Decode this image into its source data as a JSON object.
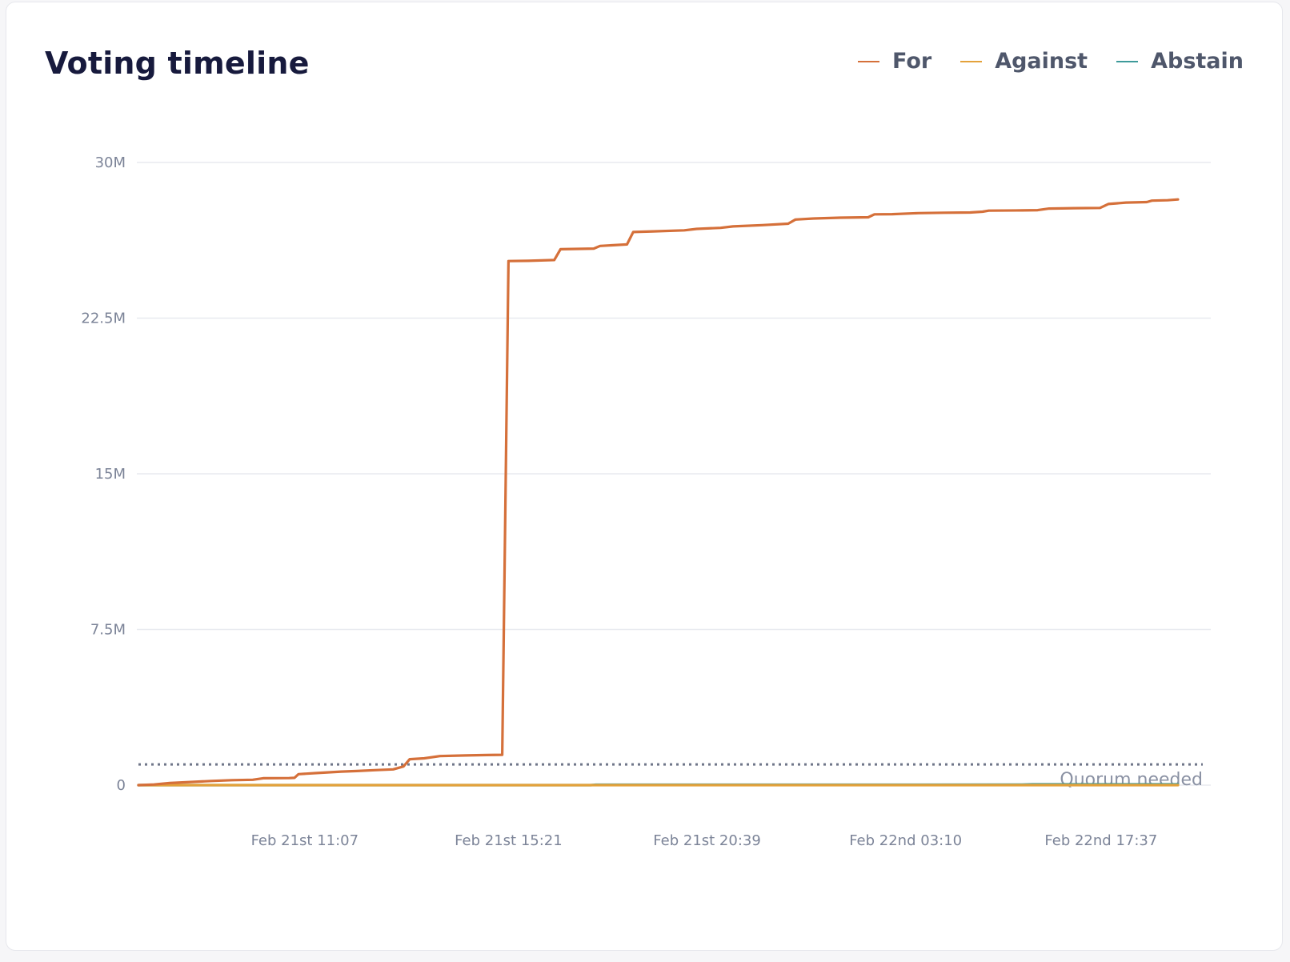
{
  "card": {
    "title": "Voting timeline"
  },
  "legend": [
    {
      "label": "For",
      "color": "#d5703a"
    },
    {
      "label": "Against",
      "color": "#e4a23b"
    },
    {
      "label": "Abstain",
      "color": "#3e9a9a"
    }
  ],
  "chart_data": {
    "type": "line",
    "title": "Voting timeline",
    "xlabel": "",
    "ylabel": "",
    "ylim": [
      0,
      30000000
    ],
    "y_ticks": [
      {
        "value": 0,
        "label": "0"
      },
      {
        "value": 7500000,
        "label": "7.5M"
      },
      {
        "value": 15000000,
        "label": "15M"
      },
      {
        "value": 22500000,
        "label": "22.5M"
      },
      {
        "value": 30000000,
        "label": "30M"
      }
    ],
    "x_range": [
      0,
      100
    ],
    "x_ticks": [
      {
        "position": 16.0,
        "label": "Feb 21st 11:07"
      },
      {
        "position": 35.6,
        "label": "Feb 21st 15:21"
      },
      {
        "position": 54.7,
        "label": "Feb 21st 20:39"
      },
      {
        "position": 73.8,
        "label": "Feb 22nd 03:10"
      },
      {
        "position": 92.6,
        "label": "Feb 22nd 17:37"
      }
    ],
    "grid": true,
    "legend_position": "top-right",
    "quorum": {
      "value": 1000000,
      "label": "Quorum needed",
      "style": "dotted",
      "color": "#6f7689"
    },
    "series": [
      {
        "name": "For",
        "color": "#d5703a",
        "points": [
          [
            0,
            0
          ],
          [
            1.5,
            30000
          ],
          [
            3.0,
            100000
          ],
          [
            5.0,
            150000
          ],
          [
            7.0,
            200000
          ],
          [
            9.0,
            240000
          ],
          [
            11.0,
            260000
          ],
          [
            11.6,
            300000
          ],
          [
            12.0,
            330000
          ],
          [
            14.5,
            340000
          ],
          [
            15.0,
            350000
          ],
          [
            15.4,
            530000
          ],
          [
            17.0,
            580000
          ],
          [
            19.5,
            650000
          ],
          [
            21.0,
            680000
          ],
          [
            22.7,
            720000
          ],
          [
            24.5,
            760000
          ],
          [
            25.5,
            900000
          ],
          [
            26.1,
            1250000
          ],
          [
            27.5,
            1290000
          ],
          [
            29.0,
            1400000
          ],
          [
            31.5,
            1430000
          ],
          [
            33.5,
            1450000
          ],
          [
            35.0,
            1460000
          ],
          [
            35.6,
            25250000
          ],
          [
            37.5,
            25260000
          ],
          [
            40.0,
            25300000
          ],
          [
            40.6,
            25820000
          ],
          [
            43.8,
            25850000
          ],
          [
            44.4,
            25980000
          ],
          [
            47.0,
            26050000
          ],
          [
            47.6,
            26650000
          ],
          [
            49.5,
            26680000
          ],
          [
            52.5,
            26730000
          ],
          [
            53.7,
            26800000
          ],
          [
            56.0,
            26850000
          ],
          [
            57.2,
            26920000
          ],
          [
            60.0,
            26980000
          ],
          [
            62.5,
            27050000
          ],
          [
            63.2,
            27250000
          ],
          [
            65.0,
            27300000
          ],
          [
            67.5,
            27340000
          ],
          [
            70.2,
            27360000
          ],
          [
            70.8,
            27500000
          ],
          [
            72.5,
            27510000
          ],
          [
            75.0,
            27560000
          ],
          [
            77.5,
            27580000
          ],
          [
            80.0,
            27590000
          ],
          [
            81.2,
            27630000
          ],
          [
            81.8,
            27680000
          ],
          [
            85.0,
            27690000
          ],
          [
            86.5,
            27700000
          ],
          [
            87.6,
            27780000
          ],
          [
            90.0,
            27800000
          ],
          [
            92.5,
            27810000
          ],
          [
            93.3,
            28000000
          ],
          [
            95.0,
            28070000
          ],
          [
            97.0,
            28090000
          ],
          [
            97.5,
            28160000
          ],
          [
            99.0,
            28180000
          ],
          [
            100,
            28220000
          ]
        ]
      },
      {
        "name": "Against",
        "color": "#e4a23b",
        "points": [
          [
            0,
            0
          ],
          [
            100,
            0
          ]
        ]
      },
      {
        "name": "Abstain",
        "color": "#3e9a9a",
        "points": [
          [
            0,
            0
          ],
          [
            43.5,
            0
          ],
          [
            44.0,
            20000
          ],
          [
            85.0,
            25000
          ],
          [
            86.0,
            40000
          ],
          [
            100,
            40000
          ]
        ]
      }
    ]
  }
}
